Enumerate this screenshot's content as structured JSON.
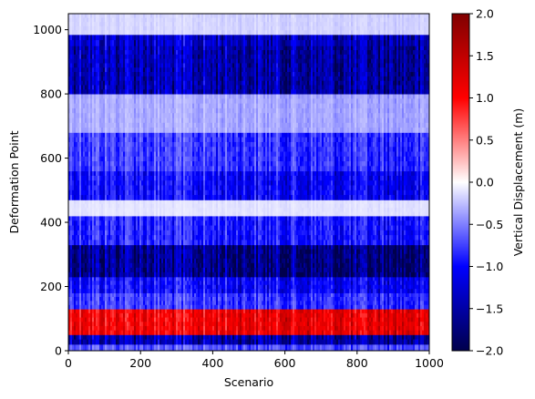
{
  "chart_data": {
    "type": "heatmap",
    "title": "",
    "xlabel": "Scenario",
    "ylabel": "Deformation Point",
    "xlim": [
      0,
      1000
    ],
    "ylim": [
      0,
      1050
    ],
    "x_ticks": [
      0,
      200,
      400,
      600,
      800,
      1000
    ],
    "y_ticks": [
      0,
      200,
      400,
      600,
      800,
      1000
    ],
    "colormap": "seismic",
    "colormap_stops": [
      "#00004c",
      "#0000ff",
      "#ffffff",
      "#ff0000",
      "#800000"
    ],
    "colorbar": {
      "label": "Vertical Displacement (m)",
      "range": [
        -2.0,
        2.0
      ],
      "ticks": [
        "-2.0",
        "-1.5",
        "-1.0",
        "-0.5",
        "0.0",
        "0.5",
        "1.0",
        "1.5",
        "2.0"
      ]
    },
    "grid": false,
    "value_bands_by_deformation_point": [
      {
        "from": 0,
        "to": 20,
        "value": -0.6
      },
      {
        "from": 20,
        "to": 50,
        "value": -1.3
      },
      {
        "from": 50,
        "to": 130,
        "value": 1.0
      },
      {
        "from": 130,
        "to": 180,
        "value": -0.7
      },
      {
        "from": 180,
        "to": 230,
        "value": -0.9
      },
      {
        "from": 230,
        "to": 330,
        "value": -1.5
      },
      {
        "from": 330,
        "to": 420,
        "value": -0.8
      },
      {
        "from": 420,
        "to": 470,
        "value": -0.1
      },
      {
        "from": 470,
        "to": 560,
        "value": -0.9
      },
      {
        "from": 560,
        "to": 680,
        "value": -0.7
      },
      {
        "from": 680,
        "to": 800,
        "value": -0.3
      },
      {
        "from": 800,
        "to": 950,
        "value": -1.3
      },
      {
        "from": 950,
        "to": 985,
        "value": -1.2
      },
      {
        "from": 985,
        "to": 1050,
        "value": -0.15
      }
    ]
  }
}
